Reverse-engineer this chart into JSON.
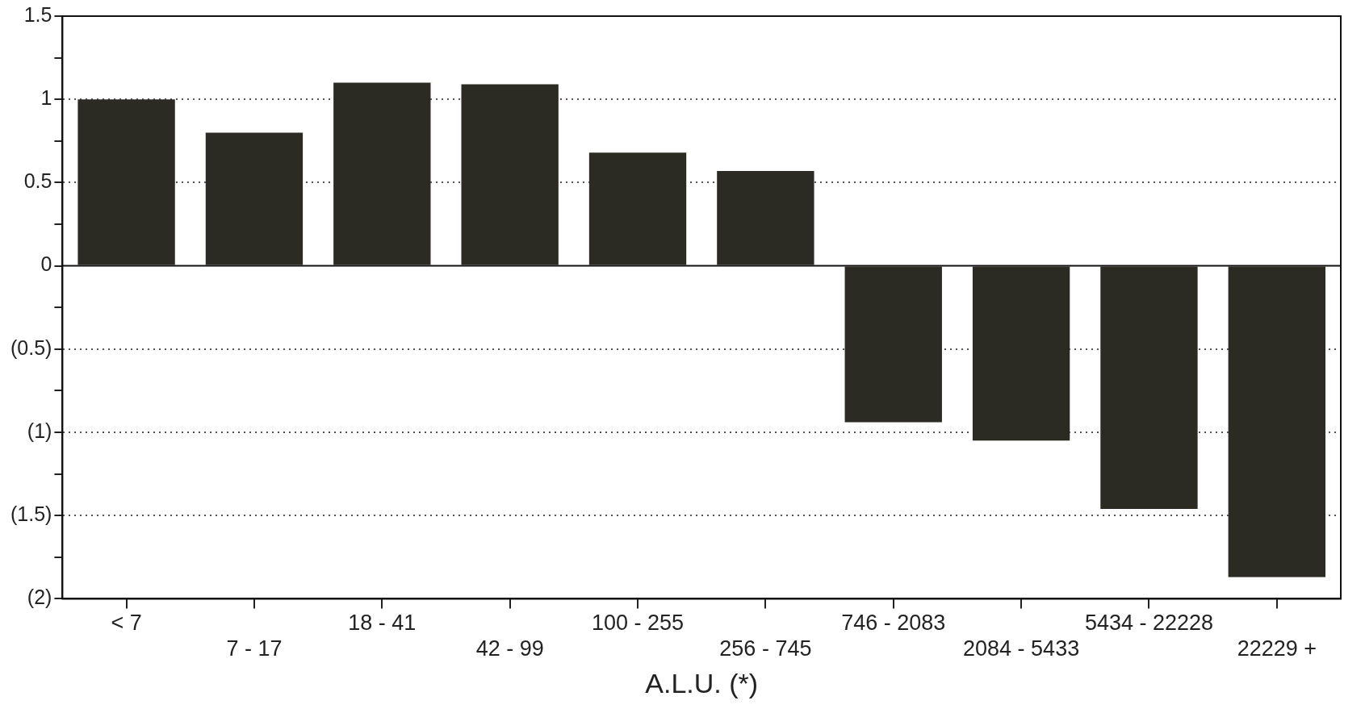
{
  "chart_data": {
    "type": "bar",
    "xlabel": "A.L.U. (*)",
    "categories": [
      "< 7",
      "7 - 17",
      "18 - 41",
      "42 - 99",
      "100 - 255",
      "256 - 745",
      "746 - 2083",
      "2084 - 5433",
      "5434 - 22228",
      "22229 +"
    ],
    "values": [
      1.0,
      0.8,
      1.1,
      1.09,
      0.68,
      0.57,
      -0.94,
      -1.05,
      -1.46,
      -1.87
    ],
    "color": "#2b2b24",
    "ylim": [
      -2,
      1.5
    ],
    "yticks": [
      {
        "value": -2,
        "label": "(2)"
      },
      {
        "value": -1.75,
        "label": null
      },
      {
        "value": -1.5,
        "label": "(1.5)"
      },
      {
        "value": -1.25,
        "label": null
      },
      {
        "value": -1,
        "label": "(1)"
      },
      {
        "value": -0.75,
        "label": null
      },
      {
        "value": -0.5,
        "label": "(0.5)"
      },
      {
        "value": -0.25,
        "label": null
      },
      0,
      {
        "value": 0.25,
        "label": null
      },
      0.5,
      {
        "value": 0.75,
        "label": null
      },
      1,
      {
        "value": 1.25,
        "label": null
      },
      1.5
    ],
    "grid": "y",
    "line_style": "dotted",
    "ref_lines": [
      {
        "axis": "y",
        "value": 0,
        "line_style": "solid",
        "color": "#111111"
      }
    ]
  }
}
